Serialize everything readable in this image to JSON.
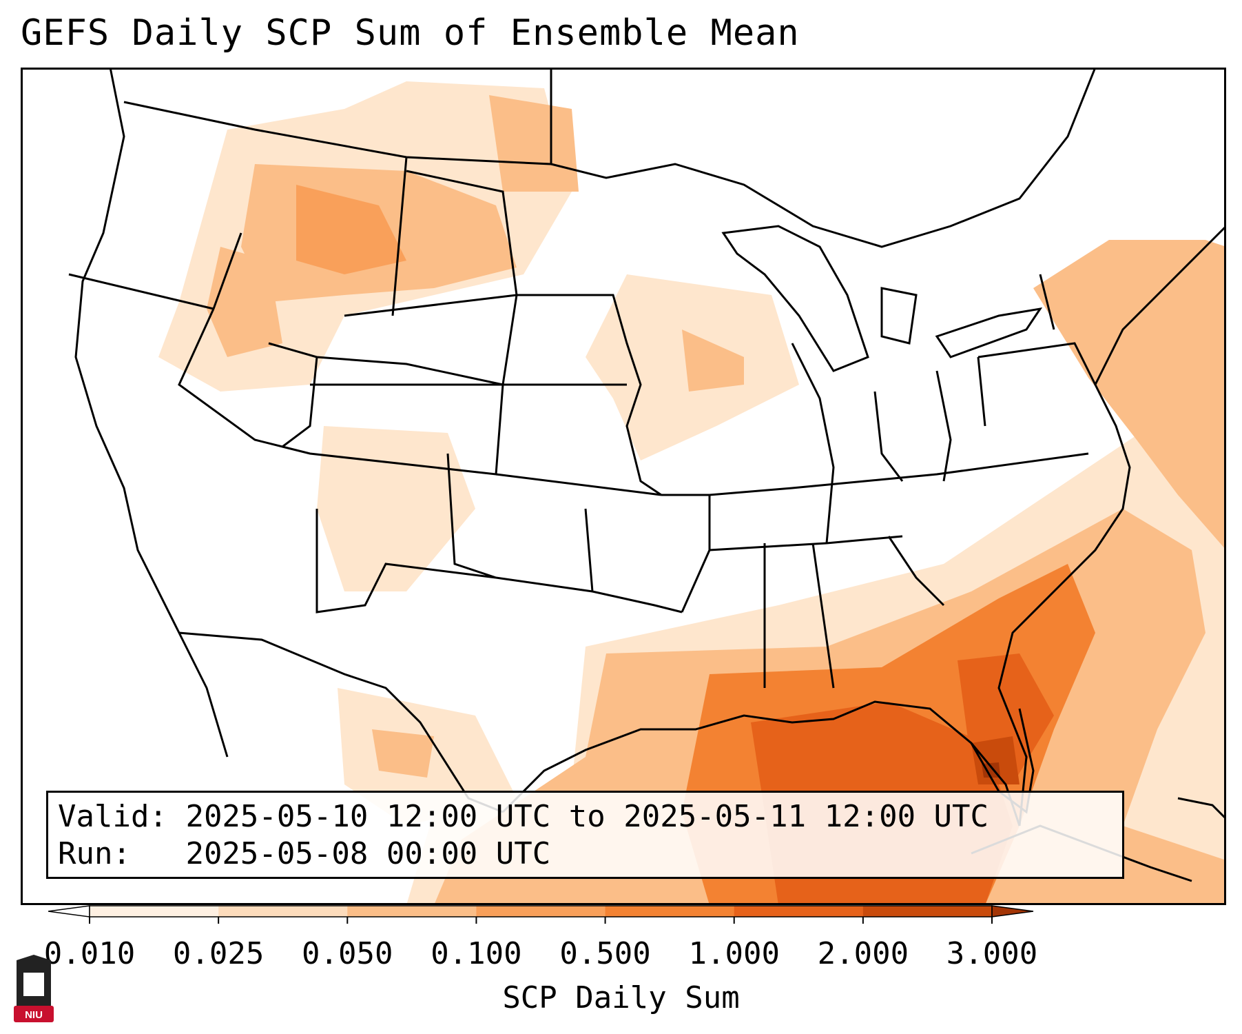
{
  "title": "GEFS Daily SCP Sum of Ensemble Mean",
  "info": {
    "valid_label": "Valid:",
    "valid_value": "2025-05-10 12:00 UTC to 2025-05-11 12:00 UTC",
    "run_label": "Run:",
    "run_value": "2025-05-08 00:00 UTC"
  },
  "colorbar": {
    "label": "SCP Daily Sum",
    "ticks": [
      "0.010",
      "0.025",
      "0.050",
      "0.100",
      "0.500",
      "1.000",
      "2.000",
      "3.000"
    ],
    "colors": [
      "#fef0e2",
      "#fddcbc",
      "#fbbe88",
      "#f9a05a",
      "#f38232",
      "#e6621a",
      "#c94b0c"
    ],
    "under_color": "#ffffff",
    "over_color": "#a33506"
  },
  "logo": {
    "text": "NIU",
    "color": "#c8102e"
  },
  "map": {
    "region": "Continental United States",
    "field": "SCP Daily Sum",
    "border_color": "#000000"
  }
}
